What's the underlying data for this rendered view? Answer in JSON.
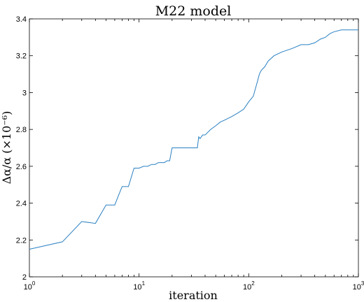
{
  "chart_data": {
    "type": "line",
    "title": "M22 model",
    "xlabel": "iteration",
    "ylabel": "Δα/α (×10⁻⁶)",
    "x_scale": "log",
    "xlim": [
      1,
      1000
    ],
    "ylim": [
      2,
      3.4
    ],
    "x_ticks": [
      1,
      10,
      100,
      1000
    ],
    "x_tick_labels": [
      {
        "base": "10",
        "exp": "0"
      },
      {
        "base": "10",
        "exp": "1"
      },
      {
        "base": "10",
        "exp": "2"
      },
      {
        "base": "10",
        "exp": "3"
      }
    ],
    "y_ticks": [
      2,
      2.2,
      2.4,
      2.6,
      2.8,
      3,
      3.2,
      3.4
    ],
    "y_tick_labels": [
      "2",
      "2.2",
      "2.4",
      "2.6",
      "2.8",
      "3",
      "3.2",
      "3.4"
    ],
    "grid": false,
    "color": "#2a80c2",
    "series": [
      {
        "x": [
          1,
          2,
          3,
          4,
          5,
          6,
          7,
          8,
          9,
          10,
          11,
          12,
          13,
          14,
          15,
          16,
          17,
          18,
          19,
          20,
          25,
          30,
          34,
          35,
          36,
          38,
          40,
          45,
          50,
          55,
          60,
          70,
          80,
          90,
          100,
          110,
          120,
          125,
          130,
          140,
          150,
          170,
          200,
          250,
          300,
          350,
          400,
          450,
          500,
          550,
          600,
          700,
          800,
          900,
          1000
        ],
        "y": [
          2.15,
          2.19,
          2.3,
          2.29,
          2.39,
          2.39,
          2.49,
          2.49,
          2.59,
          2.59,
          2.6,
          2.6,
          2.61,
          2.61,
          2.62,
          2.62,
          2.62,
          2.63,
          2.63,
          2.7,
          2.7,
          2.7,
          2.7,
          2.76,
          2.75,
          2.77,
          2.77,
          2.8,
          2.82,
          2.84,
          2.85,
          2.87,
          2.89,
          2.91,
          2.95,
          2.98,
          3.06,
          3.1,
          3.12,
          3.14,
          3.17,
          3.2,
          3.22,
          3.24,
          3.26,
          3.26,
          3.27,
          3.29,
          3.3,
          3.32,
          3.33,
          3.34,
          3.34,
          3.34,
          3.34
        ]
      }
    ]
  }
}
